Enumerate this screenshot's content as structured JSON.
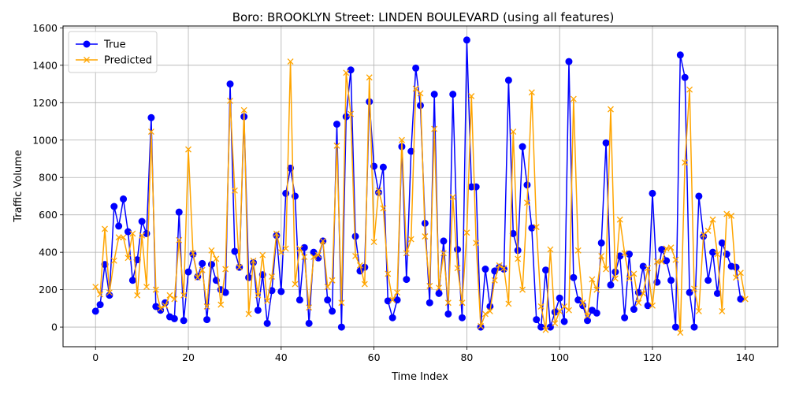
{
  "chart_data": {
    "type": "line",
    "title": "Boro: BROOKLYN Street: LINDEN BOULEVARD (using all features)",
    "xlabel": "Time Index",
    "ylabel": "Traffic Volume",
    "xlim": [
      -7,
      147
    ],
    "ylim": [
      -105,
      1610
    ],
    "xticks": [
      0,
      20,
      40,
      60,
      80,
      100,
      120,
      140
    ],
    "yticks": [
      0,
      200,
      400,
      600,
      800,
      1000,
      1200,
      1400,
      1600
    ],
    "grid": true,
    "legend_position": "upper-left",
    "series": [
      {
        "name": "True",
        "color": "#0000ff",
        "marker": "circle",
        "values": [
          85,
          120,
          335,
          170,
          645,
          540,
          685,
          510,
          250,
          360,
          565,
          500,
          1120,
          110,
          90,
          130,
          55,
          45,
          615,
          35,
          295,
          390,
          270,
          340,
          40,
          335,
          250,
          200,
          185,
          1300,
          405,
          320,
          1125,
          265,
          345,
          90,
          280,
          20,
          195,
          490,
          190,
          715,
          850,
          700,
          145,
          425,
          20,
          400,
          370,
          460,
          145,
          85,
          1085,
          0,
          1125,
          1375,
          485,
          300,
          320,
          1205,
          860,
          720,
          855,
          140,
          50,
          145,
          965,
          255,
          940,
          1385,
          1185,
          555,
          130,
          1245,
          180,
          460,
          70,
          1245,
          415,
          50,
          1535,
          750,
          750,
          0,
          310,
          110,
          300,
          320,
          310,
          1320,
          500,
          410,
          965,
          760,
          530,
          40,
          0,
          305,
          0,
          80,
          155,
          30,
          1420,
          265,
          145,
          115,
          35,
          90,
          75,
          450,
          985,
          225,
          295,
          380,
          50,
          390,
          95,
          185,
          325,
          115,
          715,
          240,
          415,
          355,
          250,
          0,
          1455,
          1335,
          185,
          0,
          700,
          485,
          250,
          400,
          180,
          450,
          390,
          325,
          320,
          150
        ]
      },
      {
        "name": "Predicted",
        "color": "#ffa500",
        "marker": "x",
        "values": [
          215,
          175,
          525,
          185,
          355,
          480,
          480,
          370,
          500,
          170,
          490,
          215,
          1045,
          200,
          100,
          115,
          170,
          150,
          465,
          170,
          950,
          395,
          265,
          305,
          110,
          410,
          365,
          120,
          310,
          1210,
          730,
          320,
          1160,
          70,
          355,
          170,
          385,
          140,
          270,
          500,
          400,
          420,
          1420,
          230,
          420,
          375,
          105,
          375,
          385,
          460,
          215,
          250,
          970,
          130,
          1360,
          1140,
          380,
          330,
          230,
          1335,
          455,
          730,
          635,
          285,
          145,
          185,
          1000,
          395,
          470,
          1275,
          1250,
          485,
          220,
          1060,
          210,
          395,
          130,
          695,
          315,
          130,
          505,
          1235,
          450,
          5,
          70,
          85,
          250,
          330,
          315,
          125,
          1045,
          365,
          200,
          665,
          1255,
          535,
          110,
          -15,
          415,
          20,
          85,
          110,
          90,
          1220,
          410,
          130,
          60,
          255,
          200,
          380,
          310,
          1165,
          260,
          575,
          395,
          260,
          285,
          130,
          180,
          315,
          115,
          350,
          350,
          420,
          425,
          360,
          -30,
          880,
          1270,
          205,
          85,
          495,
          515,
          575,
          390,
          85,
          605,
          595,
          265,
          290,
          150
        ]
      }
    ]
  }
}
